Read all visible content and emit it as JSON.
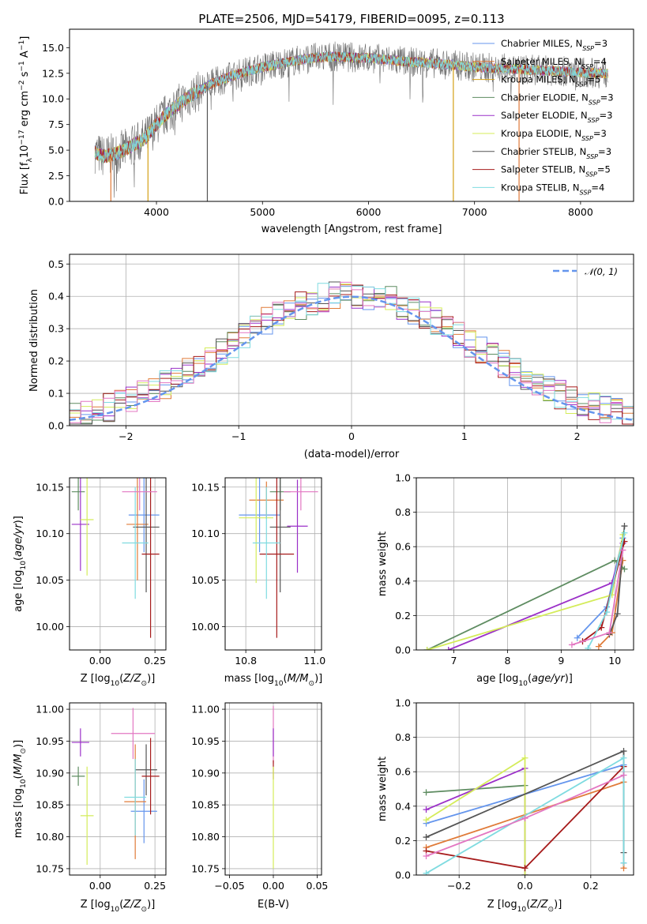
{
  "figure_title": "PLATE=2506, MJD=54179, FIBERID=0095, z=0.113",
  "colors": {
    "series": [
      "#6495ed",
      "#e07b39",
      "#d4a017",
      "#5e8c61",
      "#9b30c8",
      "#d4ec5a",
      "#555555",
      "#a61b1b",
      "#7fdbe0"
    ],
    "pink": "#e377c2",
    "normal": "#6495ed",
    "grid": "#b0b0b0"
  },
  "chart_data": [
    {
      "id": "spectrum",
      "type": "line",
      "title": "PLATE=2506, MJD=54179, FIBERID=0095, z=0.113",
      "xlabel": "wavelength [Angstrom, rest frame]",
      "ylabel": "Flux [fλ10⁻¹⁷ erg cm⁻² s⁻¹ A⁻¹]",
      "xlim": [
        3180,
        8500
      ],
      "ylim": [
        0,
        16.8
      ],
      "xticks": [
        4000,
        5000,
        6000,
        7000,
        8000
      ],
      "yticks": [
        0.0,
        2.5,
        5.0,
        7.5,
        10.0,
        12.5,
        15.0
      ],
      "grid": false,
      "legend_position": "upper-right",
      "continuum_x": [
        3420,
        3500,
        3600,
        3700,
        3800,
        3900,
        4000,
        4100,
        4200,
        4300,
        4400,
        4500,
        4600,
        4700,
        4800,
        4900,
        5000,
        5100,
        5200,
        5300,
        5400,
        5500,
        5600,
        5700,
        5800,
        5900,
        6000,
        6200,
        6400,
        6600,
        6800,
        7000,
        7200,
        7400,
        7600,
        7800,
        8000,
        8200,
        8260
      ],
      "continuum_y": [
        4.8,
        4.4,
        4.6,
        5.0,
        5.6,
        6.2,
        7.5,
        8.6,
        9.4,
        10.2,
        10.8,
        11.4,
        11.8,
        12.2,
        12.5,
        12.8,
        13.1,
        13.3,
        13.5,
        13.7,
        13.9,
        14.0,
        14.1,
        14.1,
        14.1,
        14.0,
        14.0,
        13.8,
        13.6,
        13.5,
        13.3,
        13.1,
        13.0,
        12.9,
        12.8,
        12.7,
        12.6,
        12.5,
        12.5
      ],
      "series": [
        {
          "name": "Chabrier MILES, N_SSP=3",
          "label_main": "Chabrier MILES, N",
          "label_n": "3"
        },
        {
          "name": "Salpeter MILES, N_SSP=4",
          "label_main": "Salpeter MILES, N",
          "label_n": "4"
        },
        {
          "name": "Kroupa MILES, N_SSP=5",
          "label_main": "Kroupa MILES, N",
          "label_n": "5"
        },
        {
          "name": "Chabrier ELODIE, N_SSP=3",
          "label_main": "Chabrier ELODIE, N",
          "label_n": "3"
        },
        {
          "name": "Salpeter ELODIE, N_SSP=3",
          "label_main": "Salpeter ELODIE, N",
          "label_n": "3"
        },
        {
          "name": "Kroupa ELODIE, N_SSP=3",
          "label_main": "Kroupa ELODIE, N",
          "label_n": "3"
        },
        {
          "name": "Chabrier STELIB, N_SSP=3",
          "label_main": "Chabrier STELIB, N",
          "label_n": "3"
        },
        {
          "name": "Salpeter STELIB, N_SSP=5",
          "label_main": "Salpeter STELIB, N",
          "label_n": "5"
        },
        {
          "name": "Kroupa STELIB, N_SSP=4",
          "label_main": "Kroupa STELIB, N",
          "label_n": "4"
        }
      ],
      "vertical_spikes": [
        {
          "x": 3570,
          "color_index": 1
        },
        {
          "x": 3920,
          "color_index": 2
        },
        {
          "x": 4480,
          "color_index": 6
        },
        {
          "x": 6800,
          "color_index": 2
        },
        {
          "x": 7420,
          "color_index": 1
        }
      ]
    },
    {
      "id": "residuals",
      "type": "histogram",
      "xlabel": "(data-model)/error",
      "ylabel": "Normed distribution",
      "xlim": [
        -2.5,
        2.5
      ],
      "ylim": [
        0,
        0.53
      ],
      "xticks": [
        -2,
        -1,
        0,
        1,
        2
      ],
      "yticks": [
        0.0,
        0.1,
        0.2,
        0.3,
        0.4,
        0.5
      ],
      "grid": true,
      "bin_width": 0.1,
      "reference_curve": {
        "label": "𝒩(0, 1)",
        "mean": 0,
        "sigma": 1
      }
    },
    {
      "id": "age-vs-Z",
      "type": "errorbar",
      "xlabel": "Z [log₁₀(Z/Z⊙)]",
      "ylabel": "age  [log₁₀(age/yr)]",
      "xlim": [
        -0.14,
        0.3
      ],
      "ylim": [
        9.975,
        10.16
      ],
      "xticks": [
        0.0,
        0.25
      ],
      "yticks": [
        10.0,
        10.05,
        10.1,
        10.15
      ],
      "grid": true,
      "points": [
        {
          "color_index": 0,
          "x": 0.2,
          "xerr": 0.07,
          "y": 10.12,
          "yerr": 0.04
        },
        {
          "color_index": 1,
          "x": 0.17,
          "xerr": 0.05,
          "y": 10.11,
          "yerr": 0.06
        },
        {
          "color_index": 3,
          "x": -0.1,
          "xerr": 0.03,
          "y": 10.145,
          "yerr": 0.02
        },
        {
          "color_index": 4,
          "x": -0.09,
          "xerr": 0.04,
          "y": 10.11,
          "yerr": 0.05
        },
        {
          "color_index": 5,
          "x": -0.06,
          "xerr": 0.03,
          "y": 10.115,
          "yerr": 0.06
        },
        {
          "color_index": 6,
          "x": 0.21,
          "xerr": 0.06,
          "y": 10.107,
          "yerr": 0.07
        },
        {
          "color_index": 7,
          "x": 0.23,
          "xerr": 0.04,
          "y": 10.078,
          "yerr": 0.09
        },
        {
          "color_index": 8,
          "x": 0.16,
          "xerr": 0.06,
          "y": 10.09,
          "yerr": 0.06
        },
        {
          "color": "pink",
          "x": 0.18,
          "xerr": 0.08,
          "y": 10.145,
          "yerr": 0.02
        }
      ]
    },
    {
      "id": "age-vs-mass",
      "type": "errorbar",
      "xlabel": "mass [log₁₀(M/M⊙)]",
      "ylabel": "",
      "xlim": [
        10.74,
        11.02
      ],
      "ylim": [
        9.975,
        10.16
      ],
      "xticks": [
        10.8,
        11.0
      ],
      "yticks": [
        10.0,
        10.05,
        10.1,
        10.15
      ],
      "grid": true,
      "points": [
        {
          "color_index": 0,
          "x": 10.84,
          "xerr": 0.06,
          "y": 10.12,
          "yerr": 0.04
        },
        {
          "color_index": 1,
          "x": 10.86,
          "xerr": 0.05,
          "y": 10.136,
          "yerr": 0.02
        },
        {
          "color_index": 3,
          "x": 10.9,
          "xerr": 0.03,
          "y": 10.145,
          "yerr": 0.02
        },
        {
          "color_index": 4,
          "x": 10.95,
          "xerr": 0.03,
          "y": 10.108,
          "yerr": 0.05
        },
        {
          "color_index": 5,
          "x": 10.83,
          "xerr": 0.05,
          "y": 10.117,
          "yerr": 0.07
        },
        {
          "color_index": 6,
          "x": 10.9,
          "xerr": 0.03,
          "y": 10.107,
          "yerr": 0.07
        },
        {
          "color_index": 7,
          "x": 10.89,
          "xerr": 0.05,
          "y": 10.078,
          "yerr": 0.09
        },
        {
          "color_index": 8,
          "x": 10.86,
          "xerr": 0.04,
          "y": 10.09,
          "yerr": 0.06
        },
        {
          "color": "pink",
          "x": 10.96,
          "xerr": 0.05,
          "y": 10.145,
          "yerr": 0.02
        }
      ]
    },
    {
      "id": "weight-vs-age",
      "type": "line",
      "xlabel": "age  [log₁₀(age/yr)]",
      "ylabel": "mass weight",
      "xlim": [
        6.3,
        10.35
      ],
      "ylim": [
        0,
        1.0
      ],
      "xticks": [
        7,
        8,
        9,
        10
      ],
      "yticks": [
        0.0,
        0.2,
        0.4,
        0.6,
        0.8,
        1.0
      ],
      "grid": true,
      "series": [
        {
          "color_index": 0,
          "x": [
            9.3,
            9.85,
            10.15
          ],
          "y": [
            0.07,
            0.25,
            0.65
          ]
        },
        {
          "color_index": 1,
          "x": [
            9.7,
            9.95,
            10.15
          ],
          "y": [
            0.02,
            0.1,
            0.52
          ]
        },
        {
          "color_index": 3,
          "x": [
            6.5,
            10.0,
            10.18
          ],
          "y": [
            0.0,
            0.52,
            0.47
          ]
        },
        {
          "color_index": 4,
          "x": [
            6.9,
            9.95,
            10.15
          ],
          "y": [
            0.0,
            0.39,
            0.62
          ]
        },
        {
          "color_index": 5,
          "x": [
            6.5,
            9.95,
            10.15
          ],
          "y": [
            0.0,
            0.32,
            0.67
          ]
        },
        {
          "color_index": 6,
          "x": [
            9.9,
            10.05,
            10.18
          ],
          "y": [
            0.09,
            0.21,
            0.72
          ]
        },
        {
          "color_index": 7,
          "x": [
            9.4,
            9.75,
            10.18
          ],
          "y": [
            0.05,
            0.13,
            0.63
          ]
        },
        {
          "color_index": 8,
          "x": [
            9.5,
            9.85,
            10.18
          ],
          "y": [
            0.01,
            0.22,
            0.68
          ]
        },
        {
          "color": "pink",
          "x": [
            9.2,
            9.9,
            10.15
          ],
          "y": [
            0.03,
            0.1,
            0.58
          ]
        }
      ]
    },
    {
      "id": "mass-vs-Z",
      "type": "errorbar",
      "xlabel": "Z [log₁₀(Z/Z⊙)]",
      "ylabel": "mass [log₁₀(M/M⊙)]",
      "xlim": [
        -0.14,
        0.3
      ],
      "ylim": [
        10.74,
        11.01
      ],
      "xticks": [
        0.0,
        0.25
      ],
      "yticks": [
        10.75,
        10.8,
        10.85,
        10.9,
        10.95,
        11.0
      ],
      "grid": true,
      "points": [
        {
          "color_index": 0,
          "x": 0.2,
          "xerr": 0.06,
          "y": 10.84,
          "yerr": 0.05
        },
        {
          "color_index": 1,
          "x": 0.16,
          "xerr": 0.05,
          "y": 10.855,
          "yerr": 0.09
        },
        {
          "color_index": 3,
          "x": -0.1,
          "xerr": 0.03,
          "y": 10.895,
          "yerr": 0.015
        },
        {
          "color_index": 4,
          "x": -0.09,
          "xerr": 0.04,
          "y": 10.948,
          "yerr": 0.022
        },
        {
          "color_index": 5,
          "x": -0.06,
          "xerr": 0.03,
          "y": 10.833,
          "yerr": 0.077
        },
        {
          "color_index": 6,
          "x": 0.21,
          "xerr": 0.05,
          "y": 10.905,
          "yerr": 0.04
        },
        {
          "color_index": 7,
          "x": 0.23,
          "xerr": 0.04,
          "y": 10.895,
          "yerr": 0.06
        },
        {
          "color_index": 8,
          "x": 0.16,
          "xerr": 0.05,
          "y": 10.862,
          "yerr": 0.06
        },
        {
          "color": "pink",
          "x": 0.15,
          "xerr": 0.1,
          "y": 10.962,
          "yerr": 0.04
        }
      ]
    },
    {
      "id": "mass-vs-EBV",
      "type": "errorbar",
      "xlabel": "E(B-V)",
      "ylabel": "",
      "xlim": [
        -0.055,
        0.055
      ],
      "ylim": [
        10.74,
        11.01
      ],
      "xticks": [
        -0.05,
        0.0,
        0.05
      ],
      "yticks": [
        10.75,
        10.8,
        10.85,
        10.9,
        10.95,
        11.0
      ],
      "grid": true,
      "points": [
        {
          "color": "pink",
          "x": 0.0,
          "xerr": 0.0,
          "y": 10.96,
          "yerr": 0.045
        },
        {
          "color_index": 4,
          "x": 0.0,
          "xerr": 0.0,
          "y": 10.948,
          "yerr": 0.022
        },
        {
          "color_index": 7,
          "x": 0.0,
          "xerr": 0.0,
          "y": 10.905,
          "yerr": 0.015
        },
        {
          "color_index": 5,
          "x": 0.0,
          "xerr": 0.0,
          "y": 10.83,
          "yerr": 0.08
        }
      ]
    },
    {
      "id": "weight-vs-Z",
      "type": "line",
      "xlabel": "Z [log₁₀(Z/Z⊙)]",
      "ylabel": "mass weight",
      "xlim": [
        -0.33,
        0.33
      ],
      "ylim": [
        0,
        1.0
      ],
      "xticks": [
        -0.2,
        0.0,
        0.2
      ],
      "yticks": [
        0.0,
        0.2,
        0.4,
        0.6,
        0.8,
        1.0
      ],
      "grid": true,
      "series": [
        {
          "color_index": 0,
          "x": [
            -0.3,
            0.3,
            0.3
          ],
          "y": [
            0.3,
            0.64,
            0.07
          ]
        },
        {
          "color_index": 1,
          "x": [
            -0.3,
            0.3,
            0.3
          ],
          "y": [
            0.16,
            0.54,
            0.04
          ]
        },
        {
          "color_index": 3,
          "x": [
            -0.3,
            0.0,
            0.0
          ],
          "y": [
            0.48,
            0.52,
            0.0
          ]
        },
        {
          "color_index": 4,
          "x": [
            -0.3,
            0.0,
            0.0
          ],
          "y": [
            0.38,
            0.62,
            0.0
          ]
        },
        {
          "color_index": 5,
          "x": [
            -0.3,
            0.0,
            0.0
          ],
          "y": [
            0.32,
            0.68,
            0.0
          ]
        },
        {
          "color_index": 6,
          "x": [
            -0.3,
            0.3,
            0.3
          ],
          "y": [
            0.22,
            0.72,
            0.13
          ]
        },
        {
          "color_index": 7,
          "x": [
            -0.3,
            0.0,
            0.3
          ],
          "y": [
            0.14,
            0.04,
            0.63
          ]
        },
        {
          "color_index": 8,
          "x": [
            -0.3,
            0.3,
            0.3
          ],
          "y": [
            0.01,
            0.68,
            0.07
          ]
        },
        {
          "color": "pink",
          "x": [
            -0.3,
            0.0,
            0.3
          ],
          "y": [
            0.11,
            0.33,
            0.58
          ]
        }
      ]
    }
  ]
}
